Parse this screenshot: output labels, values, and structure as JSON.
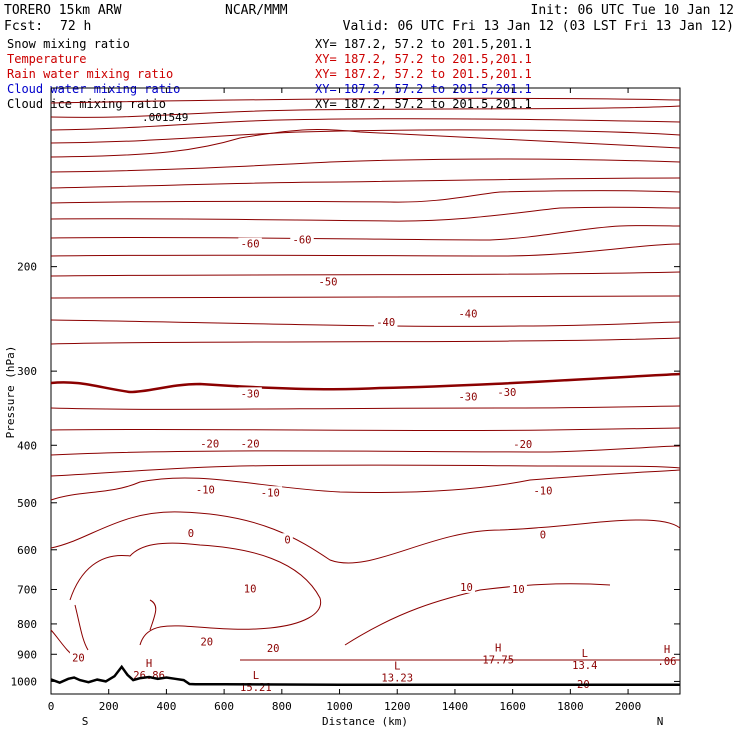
{
  "header": {
    "model": "TORERO  15km ARW",
    "center": "NCAR/MMM",
    "init": "Init: 06 UTC Tue 10 Jan 12",
    "fcst_label": "Fcst:",
    "fcst_value": "72 h",
    "valid": "Valid: 06 UTC Fri 13 Jan 12 (03 LST Fri 13 Jan 12)"
  },
  "legend": [
    {
      "label": "Snow mixing ratio",
      "xy": "XY= 187.2, 57.2 to 201.5,201.1",
      "color": "#000000",
      "xy_color": "#000000"
    },
    {
      "label": "Temperature",
      "xy": "XY= 187.2, 57.2 to 201.5,201.1",
      "color": "#cc0000",
      "xy_color": "#cc0000"
    },
    {
      "label": "Rain water mixing ratio",
      "xy": "XY= 187.2, 57.2 to 201.5,201.1",
      "color": "#cc0000",
      "xy_color": "#cc0000"
    },
    {
      "label": "Cloud water mixing ratio",
      "xy": "XY= 187.2, 57.2 to 201.5,201.1",
      "color": "#0000cc",
      "xy_color": "#0000cc"
    },
    {
      "label": "Cloud ice mixing ratio",
      "xy": "XY= 187.2, 57.2 to 201.5,201.1",
      "color": "#000000",
      "xy_color": "#000000"
    }
  ],
  "chart_data": {
    "type": "contour",
    "xlabel": "Distance (km)",
    "ylabel": "Pressure (hPa)",
    "xlim": [
      0,
      2180
    ],
    "ylim": [
      1050,
      100
    ],
    "y_scale": "log",
    "x_ticks": [
      0,
      200,
      400,
      600,
      800,
      1000,
      1200,
      1400,
      1600,
      1800,
      2000
    ],
    "y_ticks": [
      200,
      300,
      400,
      500,
      600,
      700,
      800,
      900,
      1000
    ],
    "x_end_labels": [
      "S",
      "N"
    ],
    "temperature_contour_labels": [
      {
        "text": "-60",
        "x": 690,
        "p": 183
      },
      {
        "text": "-60",
        "x": 870,
        "p": 180
      },
      {
        "text": "-50",
        "x": 960,
        "p": 212
      },
      {
        "text": "-40",
        "x": 1160,
        "p": 248
      },
      {
        "text": "-40",
        "x": 1445,
        "p": 240
      },
      {
        "text": "-30",
        "x": 690,
        "p": 327
      },
      {
        "text": "-30",
        "x": 1445,
        "p": 331
      },
      {
        "text": "-30",
        "x": 1580,
        "p": 325
      },
      {
        "text": "-20",
        "x": 550,
        "p": 397
      },
      {
        "text": "-20",
        "x": 690,
        "p": 397
      },
      {
        "text": "-20",
        "x": 1635,
        "p": 398
      },
      {
        "text": "-10",
        "x": 535,
        "p": 475
      },
      {
        "text": "-10",
        "x": 760,
        "p": 480
      },
      {
        "text": "-10",
        "x": 1705,
        "p": 477
      },
      {
        "text": "0",
        "x": 485,
        "p": 562
      },
      {
        "text": "0",
        "x": 820,
        "p": 576
      },
      {
        "text": "0",
        "x": 1705,
        "p": 565
      },
      {
        "text": "10",
        "x": 690,
        "p": 697
      },
      {
        "text": "10",
        "x": 1440,
        "p": 693
      },
      {
        "text": "10",
        "x": 1620,
        "p": 698
      },
      {
        "text": "20",
        "x": 540,
        "p": 857
      },
      {
        "text": "20",
        "x": 770,
        "p": 878
      },
      {
        "text": "20",
        "x": 95,
        "p": 912
      },
      {
        "text": "20",
        "x": 1845,
        "p": 1010
      }
    ],
    "extrema": [
      {
        "kind": "H",
        "value": "26.86",
        "x": 340,
        "p": 945
      },
      {
        "kind": "L",
        "value": "15.21",
        "x": 710,
        "p": 990
      },
      {
        "kind": "L",
        "value": "13.23",
        "x": 1200,
        "p": 955
      },
      {
        "kind": "H",
        "value": "17.75",
        "x": 1550,
        "p": 890
      },
      {
        "kind": "L",
        "value": "13.4",
        "x": 1850,
        "p": 910
      },
      {
        "kind": "H",
        "value": ".06",
        "x": 2135,
        "p": 895
      }
    ],
    "cloud_ice_label": ".001549",
    "terrain": {
      "x": [
        0,
        30,
        60,
        80,
        100,
        130,
        160,
        190,
        220,
        245,
        265,
        285,
        310,
        340,
        370,
        400,
        430,
        460,
        480,
        500,
        600,
        800,
        1000,
        1200,
        1400,
        1600,
        1800,
        2000,
        2180
      ],
      "p": [
        992,
        1005,
        990,
        985,
        995,
        1003,
        993,
        1000,
        980,
        945,
        975,
        995,
        987,
        983,
        990,
        985,
        990,
        995,
        1010,
        1011,
        1011,
        1012,
        1013,
        1013,
        1013,
        1013,
        1013,
        1013,
        1013
      ]
    }
  }
}
